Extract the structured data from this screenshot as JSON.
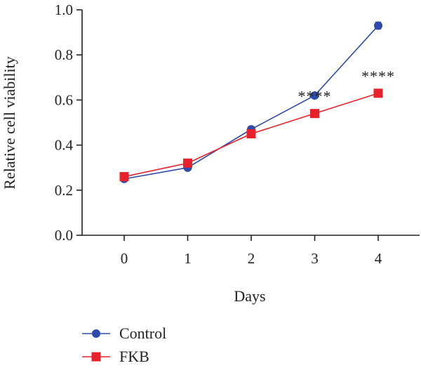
{
  "chart_data": {
    "type": "line",
    "xlabel": "Days",
    "ylabel": "Relative cell viability",
    "x": [
      0,
      1,
      2,
      3,
      4
    ],
    "xticks": [
      "0",
      "1",
      "2",
      "3",
      "4"
    ],
    "ylim": [
      0,
      1.0
    ],
    "yticks": [
      "0.0",
      "0.2",
      "0.4",
      "0.6",
      "0.8",
      "1.0"
    ],
    "grid": false,
    "legend_position": "bottom-left",
    "series": [
      {
        "name": "Control",
        "marker": "circle",
        "color": "#2e4bab",
        "values": [
          0.25,
          0.3,
          0.47,
          0.62,
          0.93
        ],
        "errors": [
          0.005,
          0.005,
          0.005,
          0.01,
          0.015
        ]
      },
      {
        "name": "FKB",
        "marker": "square",
        "color": "#e8212a",
        "values": [
          0.26,
          0.32,
          0.45,
          0.54,
          0.63
        ],
        "errors": [
          0.005,
          0.005,
          0.005,
          0.005,
          0.005
        ]
      }
    ],
    "annotations": [
      {
        "text": "****",
        "x": 3,
        "y": 0.54
      },
      {
        "text": "****",
        "x": 4,
        "y": 0.63
      }
    ]
  }
}
